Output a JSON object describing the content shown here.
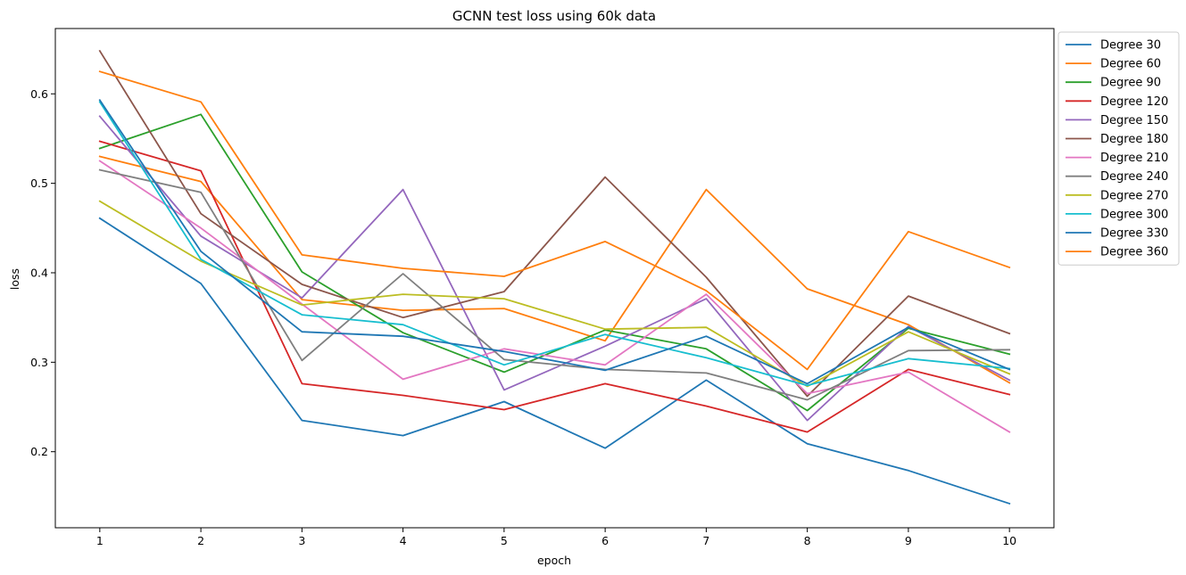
{
  "chart_data": {
    "type": "line",
    "title": "GCNN test loss using 60k data",
    "xlabel": "epoch",
    "ylabel": "loss",
    "x": [
      1,
      2,
      3,
      4,
      5,
      6,
      7,
      8,
      9,
      10
    ],
    "xlim": [
      0.56,
      10.44
    ],
    "ylim": [
      0.115,
      0.673
    ],
    "yticks": [
      0.2,
      0.3,
      0.4,
      0.5,
      0.6
    ],
    "grid": false,
    "legend_position": "outside-top-right",
    "series": [
      {
        "name": "Degree 30",
        "color": "#1f77b4",
        "values": [
          0.461,
          0.388,
          0.235,
          0.218,
          0.256,
          0.204,
          0.28,
          0.209,
          0.179,
          0.142
        ]
      },
      {
        "name": "Degree 60",
        "color": "#ff7f0e",
        "values": [
          0.53,
          0.502,
          0.37,
          0.358,
          0.36,
          0.324,
          0.493,
          0.382,
          0.342,
          0.277
        ]
      },
      {
        "name": "Degree 90",
        "color": "#2ca02c",
        "values": [
          0.539,
          0.577,
          0.401,
          0.333,
          0.289,
          0.336,
          0.315,
          0.246,
          0.338,
          0.309
        ]
      },
      {
        "name": "Degree 120",
        "color": "#d62728",
        "values": [
          0.547,
          0.514,
          0.276,
          0.263,
          0.247,
          0.276,
          0.251,
          0.222,
          0.292,
          0.264
        ]
      },
      {
        "name": "Degree 150",
        "color": "#9467bd",
        "values": [
          0.575,
          0.441,
          0.372,
          0.493,
          0.269,
          0.318,
          0.371,
          0.235,
          0.34,
          0.28
        ]
      },
      {
        "name": "Degree 180",
        "color": "#8c564b",
        "values": [
          0.648,
          0.466,
          0.387,
          0.35,
          0.379,
          0.507,
          0.395,
          0.262,
          0.374,
          0.332
        ]
      },
      {
        "name": "Degree 210",
        "color": "#e377c2",
        "values": [
          0.525,
          0.45,
          0.365,
          0.281,
          0.315,
          0.297,
          0.376,
          0.265,
          0.289,
          0.222
        ]
      },
      {
        "name": "Degree 240",
        "color": "#7f7f7f",
        "values": [
          0.515,
          0.49,
          0.302,
          0.399,
          0.303,
          0.292,
          0.288,
          0.258,
          0.313,
          0.314
        ]
      },
      {
        "name": "Degree 270",
        "color": "#bcbd22",
        "values": [
          0.48,
          0.413,
          0.364,
          0.376,
          0.371,
          0.337,
          0.339,
          0.273,
          0.334,
          0.287
        ]
      },
      {
        "name": "Degree 300",
        "color": "#17becf",
        "values": [
          0.591,
          0.415,
          0.353,
          0.342,
          0.297,
          0.331,
          0.305,
          0.274,
          0.304,
          0.293
        ]
      },
      {
        "name": "Degree 330",
        "color": "#1f77b4",
        "values": [
          0.593,
          0.424,
          0.334,
          0.329,
          0.312,
          0.291,
          0.329,
          0.276,
          0.339,
          0.292
        ]
      },
      {
        "name": "Degree 360",
        "color": "#ff7f0e",
        "values": [
          0.625,
          0.591,
          0.42,
          0.405,
          0.396,
          0.435,
          0.38,
          0.292,
          0.446,
          0.406
        ]
      }
    ]
  }
}
